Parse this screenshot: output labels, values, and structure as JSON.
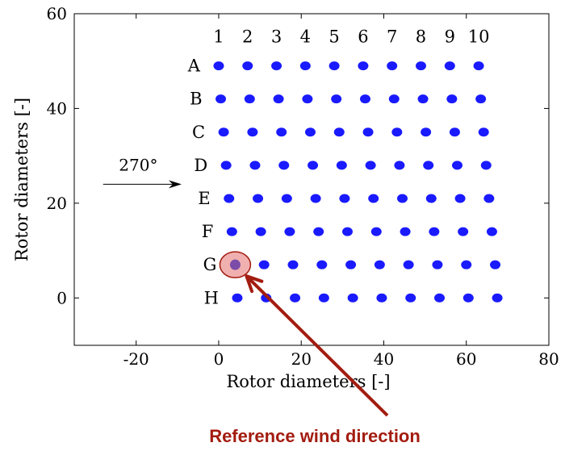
{
  "chart_data": {
    "type": "scatter",
    "xlabel": "Rotor diameters [-]",
    "ylabel": "Rotor diameters [-]",
    "xlim": [
      -35,
      80
    ],
    "ylim": [
      -10,
      60
    ],
    "grid": false,
    "x_ticks": [
      "-20",
      "0",
      "20",
      "40",
      "60",
      "80"
    ],
    "y_ticks": [
      "0",
      "20",
      "40",
      "60"
    ],
    "x_tick_values": [
      -20,
      0,
      20,
      40,
      60,
      80
    ],
    "y_tick_values": [
      0,
      20,
      40,
      60
    ],
    "row_labels": [
      "A",
      "B",
      "C",
      "D",
      "E",
      "F",
      "G",
      "H"
    ],
    "column_labels": [
      "1",
      "2",
      "3",
      "4",
      "5",
      "6",
      "7",
      "8",
      "9",
      "10"
    ],
    "marker_color": "#1a1aff",
    "series": [
      {
        "row": "A",
        "y": 49,
        "x": [
          0,
          7,
          14,
          21,
          28,
          35,
          42,
          49,
          56,
          63
        ]
      },
      {
        "row": "B",
        "y": 42,
        "x": [
          0.5,
          7.5,
          14.5,
          21.5,
          28.5,
          35.5,
          42.5,
          49.5,
          56.5,
          63.5
        ]
      },
      {
        "row": "C",
        "y": 35,
        "x": [
          1.2,
          8.2,
          15.2,
          22.2,
          29.2,
          36.2,
          43.2,
          50.2,
          57.2,
          64.2
        ]
      },
      {
        "row": "D",
        "y": 28,
        "x": [
          1.8,
          8.8,
          15.8,
          22.8,
          29.8,
          36.8,
          43.8,
          50.8,
          57.8,
          64.8
        ]
      },
      {
        "row": "E",
        "y": 21,
        "x": [
          2.5,
          9.5,
          16.5,
          23.5,
          30.5,
          37.5,
          44.5,
          51.5,
          58.5,
          65.5
        ]
      },
      {
        "row": "F",
        "y": 14,
        "x": [
          3.2,
          10.2,
          17.2,
          24.2,
          31.2,
          38.2,
          45.2,
          52.2,
          59.2,
          66.2
        ]
      },
      {
        "row": "G",
        "y": 7,
        "x": [
          4,
          11,
          18,
          25,
          32,
          39,
          46,
          53,
          60,
          67
        ]
      },
      {
        "row": "H",
        "y": 0,
        "x": [
          4.5,
          11.5,
          18.5,
          25.5,
          32.5,
          39.5,
          46.5,
          53.5,
          60.5,
          67.5
        ]
      }
    ],
    "wind": {
      "label": "270°",
      "arrow_from": [
        -28,
        24
      ],
      "arrow_to": [
        -9,
        24
      ]
    },
    "reference": {
      "label": "Reference wind direction",
      "color": "#a31c10",
      "highlight_fill": "#f1b0b0",
      "marker_color": "#7b4ca8",
      "point": [
        4,
        7
      ]
    }
  }
}
